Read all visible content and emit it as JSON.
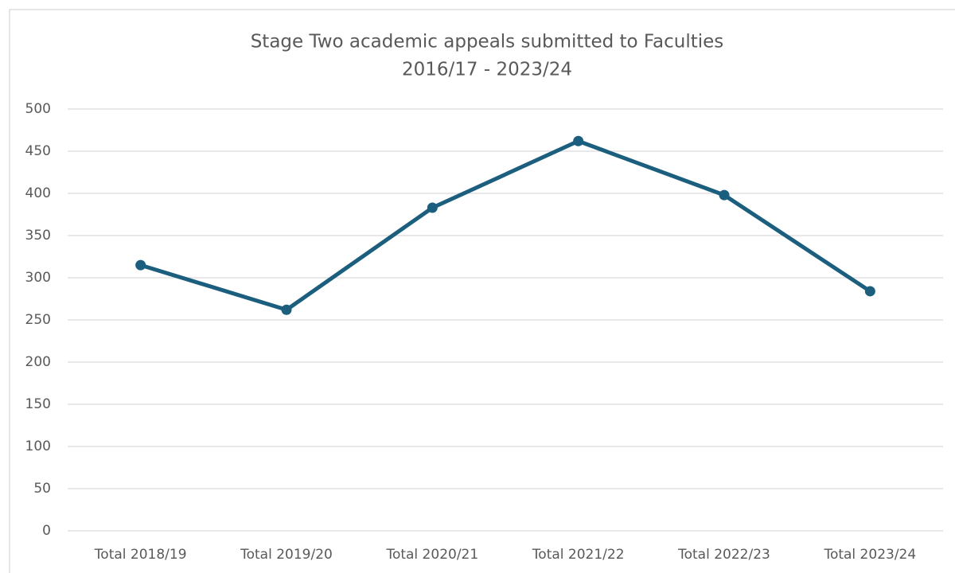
{
  "chart_data": {
    "type": "line",
    "title": "Stage Two academic appeals submitted to Faculties",
    "subtitle": "2016/17 - 2023/24",
    "categories": [
      "Total 2018/19",
      "Total 2019/20",
      "Total 2020/21",
      "Total 2021/22",
      "Total 2022/23",
      "Total 2023/24"
    ],
    "values": [
      315,
      262,
      383,
      462,
      398,
      284
    ],
    "color": "#1b5e7e",
    "ylim": [
      0,
      500
    ],
    "yticks": [
      0,
      50,
      100,
      150,
      200,
      250,
      300,
      350,
      400,
      450,
      500
    ],
    "grid": true
  }
}
